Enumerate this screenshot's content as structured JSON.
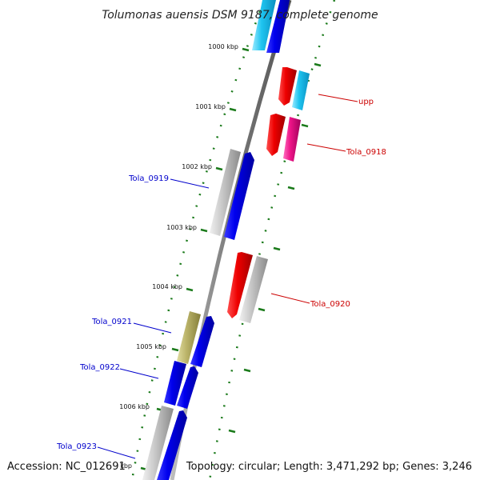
{
  "title": "Tolumonas auensis DSM 9187, complete genome",
  "accession": "Accession: NC_012691",
  "topology": "Topology: circular; Length: 3,471,292 bp; Genes: 3,246",
  "kbp_labels": [
    "1000 kbp",
    "1001 kbp",
    "1002 kbp",
    "1003 kbp",
    "1004 kbp",
    "1005 kbp",
    "1006 kbp",
    "kbp"
  ],
  "gene_labels": {
    "upp": "upp",
    "tola_0918": "Tola_0918",
    "tola_0919": "Tola_0919",
    "tola_0920": "Tola_0920",
    "tola_0921": "Tola_0921",
    "tola_0922": "Tola_0922",
    "tola_0923": "Tola_0923"
  },
  "colors": {
    "forward_label": "#0000cc",
    "reverse_label": "#cc0000",
    "backbone": "#7f7f7f",
    "tick": "#1a7a1a",
    "blue": "#0000ee",
    "cyan": "#1ec4f0",
    "red": "#ee0000",
    "magenta": "#ee1488",
    "gray": "#bdbdbd",
    "olive": "#bbb46a"
  }
}
